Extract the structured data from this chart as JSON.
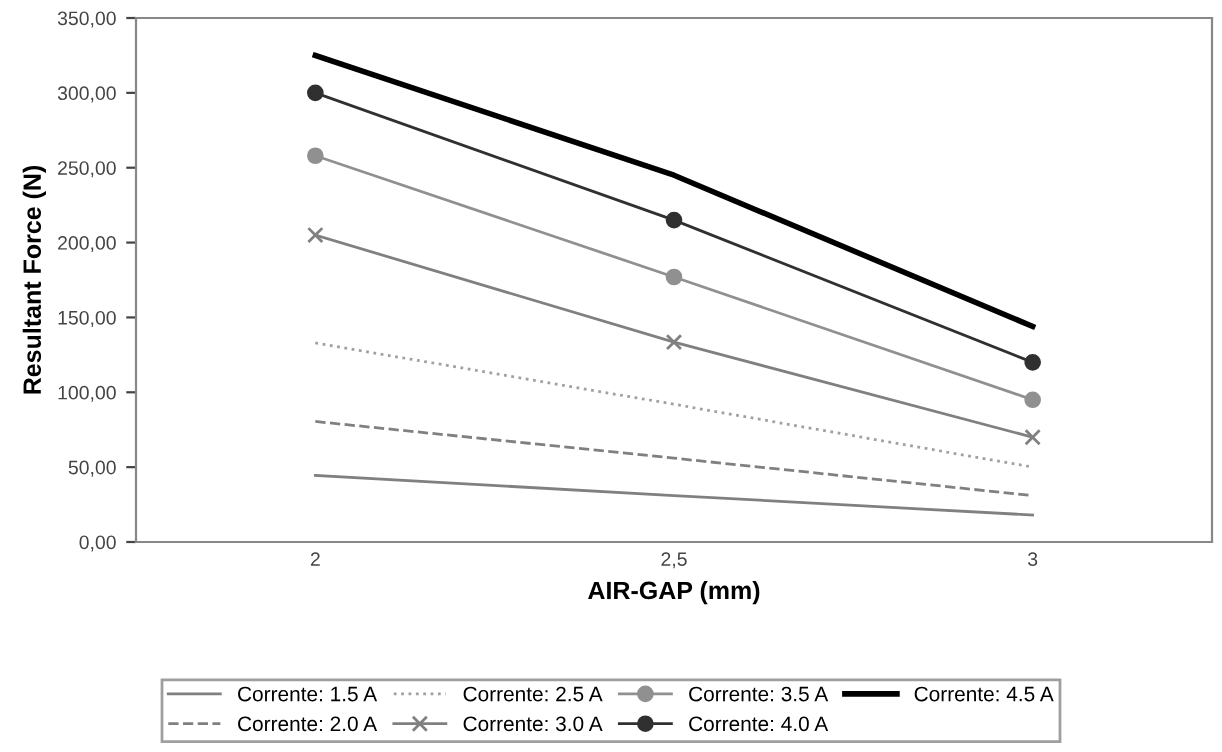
{
  "chart_data": {
    "type": "line",
    "xlabel": "AIR-GAP (mm)",
    "ylabel": "Resultant Force (N)",
    "categories": [
      "2",
      "2,5",
      "3"
    ],
    "ylim": [
      0,
      350
    ],
    "yticks": [
      {
        "value": 0,
        "label": "0,00"
      },
      {
        "value": 50,
        "label": "50,00"
      },
      {
        "value": 100,
        "label": "100,00"
      },
      {
        "value": 150,
        "label": "150,00"
      },
      {
        "value": 200,
        "label": "200,00"
      },
      {
        "value": 250,
        "label": "250,00"
      },
      {
        "value": 300,
        "label": "300,00"
      },
      {
        "value": 350,
        "label": "350,00"
      }
    ],
    "grid": false,
    "legend": "bottom",
    "series": [
      {
        "name": "Corrente: 1.5 A",
        "color": "#808080",
        "values": [
          44.5,
          31,
          18
        ],
        "line_style": "solid",
        "marker": "none"
      },
      {
        "name": "Corrente: 2.0 A",
        "color": "#808080",
        "values": [
          80.5,
          56,
          31
        ],
        "line_style": "dashed",
        "marker": "none"
      },
      {
        "name": "Corrente: 2.5 A",
        "color": "#a0a0a0",
        "values": [
          133,
          92,
          50
        ],
        "line_style": "dotted",
        "marker": "none"
      },
      {
        "name": "Corrente: 3.0 A",
        "color": "#808080",
        "values": [
          205,
          133.5,
          70
        ],
        "line_style": "solid",
        "marker": "cross"
      },
      {
        "name": "Corrente: 3.5 A",
        "color": "#909090",
        "values": [
          258,
          177,
          95
        ],
        "line_style": "solid",
        "marker": "circle"
      },
      {
        "name": "Corrente: 4.0 A",
        "color": "#303030",
        "values": [
          300,
          215,
          120
        ],
        "line_style": "solid",
        "marker": "circle"
      },
      {
        "name": "Corrente: 4.5 A",
        "color": "#000000",
        "values": [
          325,
          245,
          144
        ],
        "line_style": "solid",
        "marker": "none"
      }
    ]
  }
}
